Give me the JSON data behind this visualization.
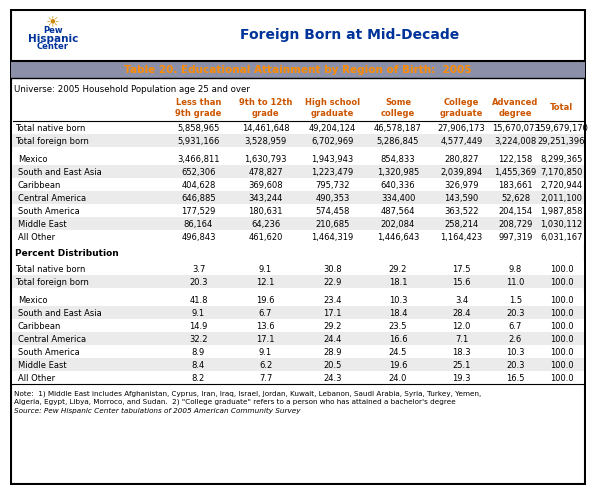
{
  "title_header": "Foreign Born at Mid-Decade",
  "table_title": "Table 20. Educational Attainment by Region of Birth:  2005",
  "universe": "Universe: 2005 Household Population age 25 and over",
  "col_headers": [
    "Less than\n9th grade",
    "9th to 12th\ngrade",
    "High school\ngraduate",
    "Some\ncollege",
    "College\ngraduate",
    "Advanced\ndegree",
    "Total"
  ],
  "sections": [
    {
      "label": "",
      "rows": [
        [
          "Total native born",
          "5,858,965",
          "14,461,648",
          "49,204,124",
          "46,578,187",
          "27,906,173",
          "15,670,073",
          "159,679,170"
        ],
        [
          "Total foreign born",
          "5,931,166",
          "3,528,959",
          "6,702,969",
          "5,286,845",
          "4,577,449",
          "3,224,008",
          "29,251,396"
        ]
      ]
    },
    {
      "label": "",
      "rows": [
        [
          "Mexico",
          "3,466,811",
          "1,630,793",
          "1,943,943",
          "854,833",
          "280,827",
          "122,158",
          "8,299,365"
        ],
        [
          "South and East Asia",
          "652,306",
          "478,827",
          "1,223,479",
          "1,320,985",
          "2,039,894",
          "1,455,369",
          "7,170,850"
        ],
        [
          "Caribbean",
          "404,628",
          "369,608",
          "795,732",
          "640,336",
          "326,979",
          "183,661",
          "2,720,944"
        ],
        [
          "Central America",
          "646,885",
          "343,244",
          "490,353",
          "334,400",
          "143,590",
          "52,628",
          "2,011,100"
        ],
        [
          "South America",
          "177,529",
          "180,631",
          "574,458",
          "487,564",
          "363,522",
          "204,154",
          "1,987,858"
        ],
        [
          "Middle East",
          "86,164",
          "64,236",
          "210,685",
          "202,084",
          "258,214",
          "208,729",
          "1,030,112"
        ],
        [
          "All Other",
          "496,843",
          "461,620",
          "1,464,319",
          "1,446,643",
          "1,164,423",
          "997,319",
          "6,031,167"
        ]
      ]
    },
    {
      "label": "Percent Distribution",
      "rows": [
        [
          "Total native born",
          "3.7",
          "9.1",
          "30.8",
          "29.2",
          "17.5",
          "9.8",
          "100.0"
        ],
        [
          "Total foreign born",
          "20.3",
          "12.1",
          "22.9",
          "18.1",
          "15.6",
          "11.0",
          "100.0"
        ]
      ]
    },
    {
      "label": "",
      "rows": [
        [
          "Mexico",
          "41.8",
          "19.6",
          "23.4",
          "10.3",
          "3.4",
          "1.5",
          "100.0"
        ],
        [
          "South and East Asia",
          "9.1",
          "6.7",
          "17.1",
          "18.4",
          "28.4",
          "20.3",
          "100.0"
        ],
        [
          "Caribbean",
          "14.9",
          "13.6",
          "29.2",
          "23.5",
          "12.0",
          "6.7",
          "100.0"
        ],
        [
          "Central America",
          "32.2",
          "17.1",
          "24.4",
          "16.6",
          "7.1",
          "2.6",
          "100.0"
        ],
        [
          "South America",
          "8.9",
          "9.1",
          "28.9",
          "24.5",
          "18.3",
          "10.3",
          "100.0"
        ],
        [
          "Middle East",
          "8.4",
          "6.2",
          "20.5",
          "19.6",
          "25.1",
          "20.3",
          "100.0"
        ],
        [
          "All Other",
          "8.2",
          "7.7",
          "24.3",
          "24.0",
          "19.3",
          "16.5",
          "100.0"
        ]
      ]
    }
  ],
  "note_line1": "Note:  1) Middle East includes Afghanistan, Cyprus, Iran, Iraq, Israel, Jordan, Kuwait, Lebanon, Saudi Arabia, Syria, Turkey, Yemen,",
  "note_line2": "Algeria, Egypt, Libya, Morroco, and Sudan.  2) \"College graduate\" refers to a person who has attained a bachelor's degree",
  "source": "Source: Pew Hispanic Center tabulations of 2005 American Community Survey",
  "outer_border": "#000000",
  "header_title_color": "#003399",
  "table_title_bg": "#8B8B9B",
  "table_title_text_color": "#FF8C00",
  "col_header_color": "#CC5500",
  "white": "#FFFFFF",
  "light_gray": "#E8E8F0",
  "row_text": "#000000",
  "section_bold_color": "#000000"
}
